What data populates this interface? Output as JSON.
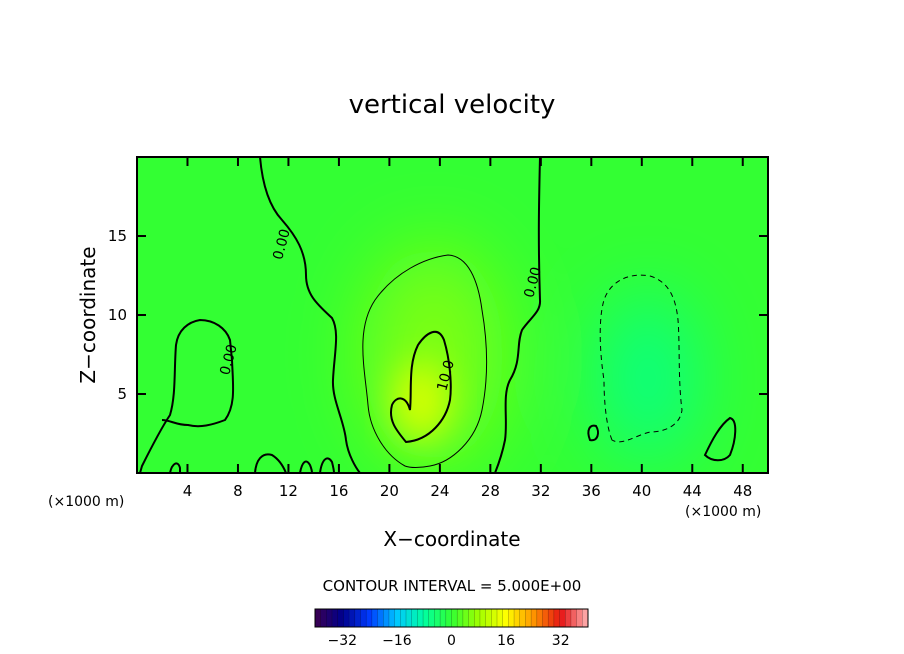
{
  "chart_data": {
    "type": "heatmap",
    "title": "vertical velocity",
    "xlabel": "X−coordinate",
    "ylabel": "Z−coordinate",
    "x_unit": "(×1000 m)",
    "xlim": [
      0,
      50
    ],
    "ylim": [
      0,
      20
    ],
    "x_ticks": [
      4,
      8,
      12,
      16,
      20,
      24,
      28,
      32,
      36,
      40,
      44,
      48
    ],
    "y_ticks": [
      5,
      10,
      15
    ],
    "contour_interval_label": "CONTOUR INTERVAL = 5.000E+00",
    "contour_labels": [
      {
        "text": "0.00",
        "x": 11.8,
        "z": 14.4
      },
      {
        "text": "0.00",
        "x": 7.6,
        "z": 7.1
      },
      {
        "text": "10.0",
        "x": 24.8,
        "z": 6.1
      },
      {
        "text": "0.00",
        "x": 31.7,
        "z": 12.0
      }
    ],
    "colorbar": {
      "range": [
        -40,
        40
      ],
      "tick_values": [
        -32,
        -16,
        0,
        16,
        32
      ],
      "tick_labels": [
        "−32",
        "−16",
        "0",
        "16",
        "32"
      ]
    },
    "features": [
      {
        "type": "updraft_max",
        "x": 22.5,
        "z": 4.5,
        "value": 13
      },
      {
        "type": "updraft_halo",
        "x": 23.5,
        "z": 7.5,
        "value": 6
      },
      {
        "type": "downdraft_min",
        "x": 40.5,
        "z": 6.0,
        "value": -7
      }
    ]
  }
}
